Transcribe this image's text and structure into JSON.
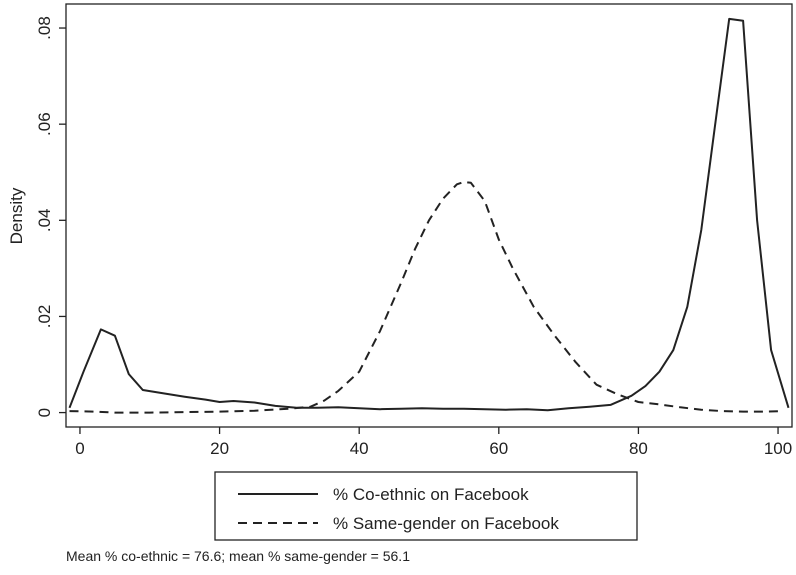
{
  "chart_data": {
    "type": "line",
    "xlabel": "",
    "ylabel": "Density",
    "xlim": [
      -2,
      102
    ],
    "ylim": [
      -0.003,
      0.085
    ],
    "xticks": [
      0,
      20,
      40,
      60,
      80,
      100
    ],
    "xtick_labels": [
      "0",
      "20",
      "40",
      "60",
      "80",
      "100"
    ],
    "yticks": [
      0,
      0.02,
      0.04,
      0.06,
      0.08
    ],
    "ytick_labels": [
      "0",
      ".02",
      ".04",
      ".06",
      ".08"
    ],
    "grid": false,
    "legend_position": "bottom",
    "series": [
      {
        "name": "% Co-ethnic on Facebook",
        "dash": "solid",
        "x": [
          -1.5,
          0.5,
          3,
          5,
          7,
          9,
          12,
          15,
          18,
          20,
          22,
          25,
          28,
          31,
          34,
          37,
          40,
          43,
          46,
          49,
          52,
          55,
          58,
          61,
          64,
          67,
          70,
          73,
          76,
          79,
          81,
          83,
          85,
          87,
          89,
          91,
          93,
          95,
          97,
          99,
          101.5
        ],
        "y": [
          0.001,
          0.0085,
          0.0173,
          0.016,
          0.008,
          0.0047,
          0.004,
          0.0033,
          0.0027,
          0.0022,
          0.0024,
          0.0021,
          0.0014,
          0.001,
          0.001,
          0.0011,
          0.0009,
          0.0007,
          0.0008,
          0.0009,
          0.0008,
          0.0008,
          0.0007,
          0.0006,
          0.0007,
          0.0005,
          0.0009,
          0.0012,
          0.0016,
          0.0035,
          0.0055,
          0.0085,
          0.013,
          0.022,
          0.038,
          0.06,
          0.0819,
          0.0815,
          0.04,
          0.013,
          0.001
        ]
      },
      {
        "name": "% Same-gender on Facebook",
        "dash": "dashed",
        "x": [
          -1.5,
          2,
          5,
          10,
          15,
          20,
          25,
          30,
          33,
          35,
          37,
          40,
          43,
          46,
          48,
          50,
          52,
          54,
          55,
          56,
          58,
          60,
          62,
          65,
          68,
          71,
          74,
          77,
          80,
          83,
          86,
          89,
          92,
          95,
          98,
          100.5
        ],
        "y": [
          0.0003,
          0.0002,
          0.0,
          0.0,
          0.0001,
          0.0002,
          0.0004,
          0.0008,
          0.0012,
          0.0025,
          0.0045,
          0.0085,
          0.017,
          0.027,
          0.034,
          0.04,
          0.0445,
          0.0475,
          0.048,
          0.0478,
          0.044,
          0.036,
          0.03,
          0.022,
          0.016,
          0.0105,
          0.0058,
          0.0038,
          0.0022,
          0.0017,
          0.0011,
          0.0006,
          0.0003,
          0.0002,
          0.0002,
          0.0003
        ]
      }
    ],
    "note": "Mean % co-ethnic = 76.6; mean % same-gender = 56.1"
  }
}
